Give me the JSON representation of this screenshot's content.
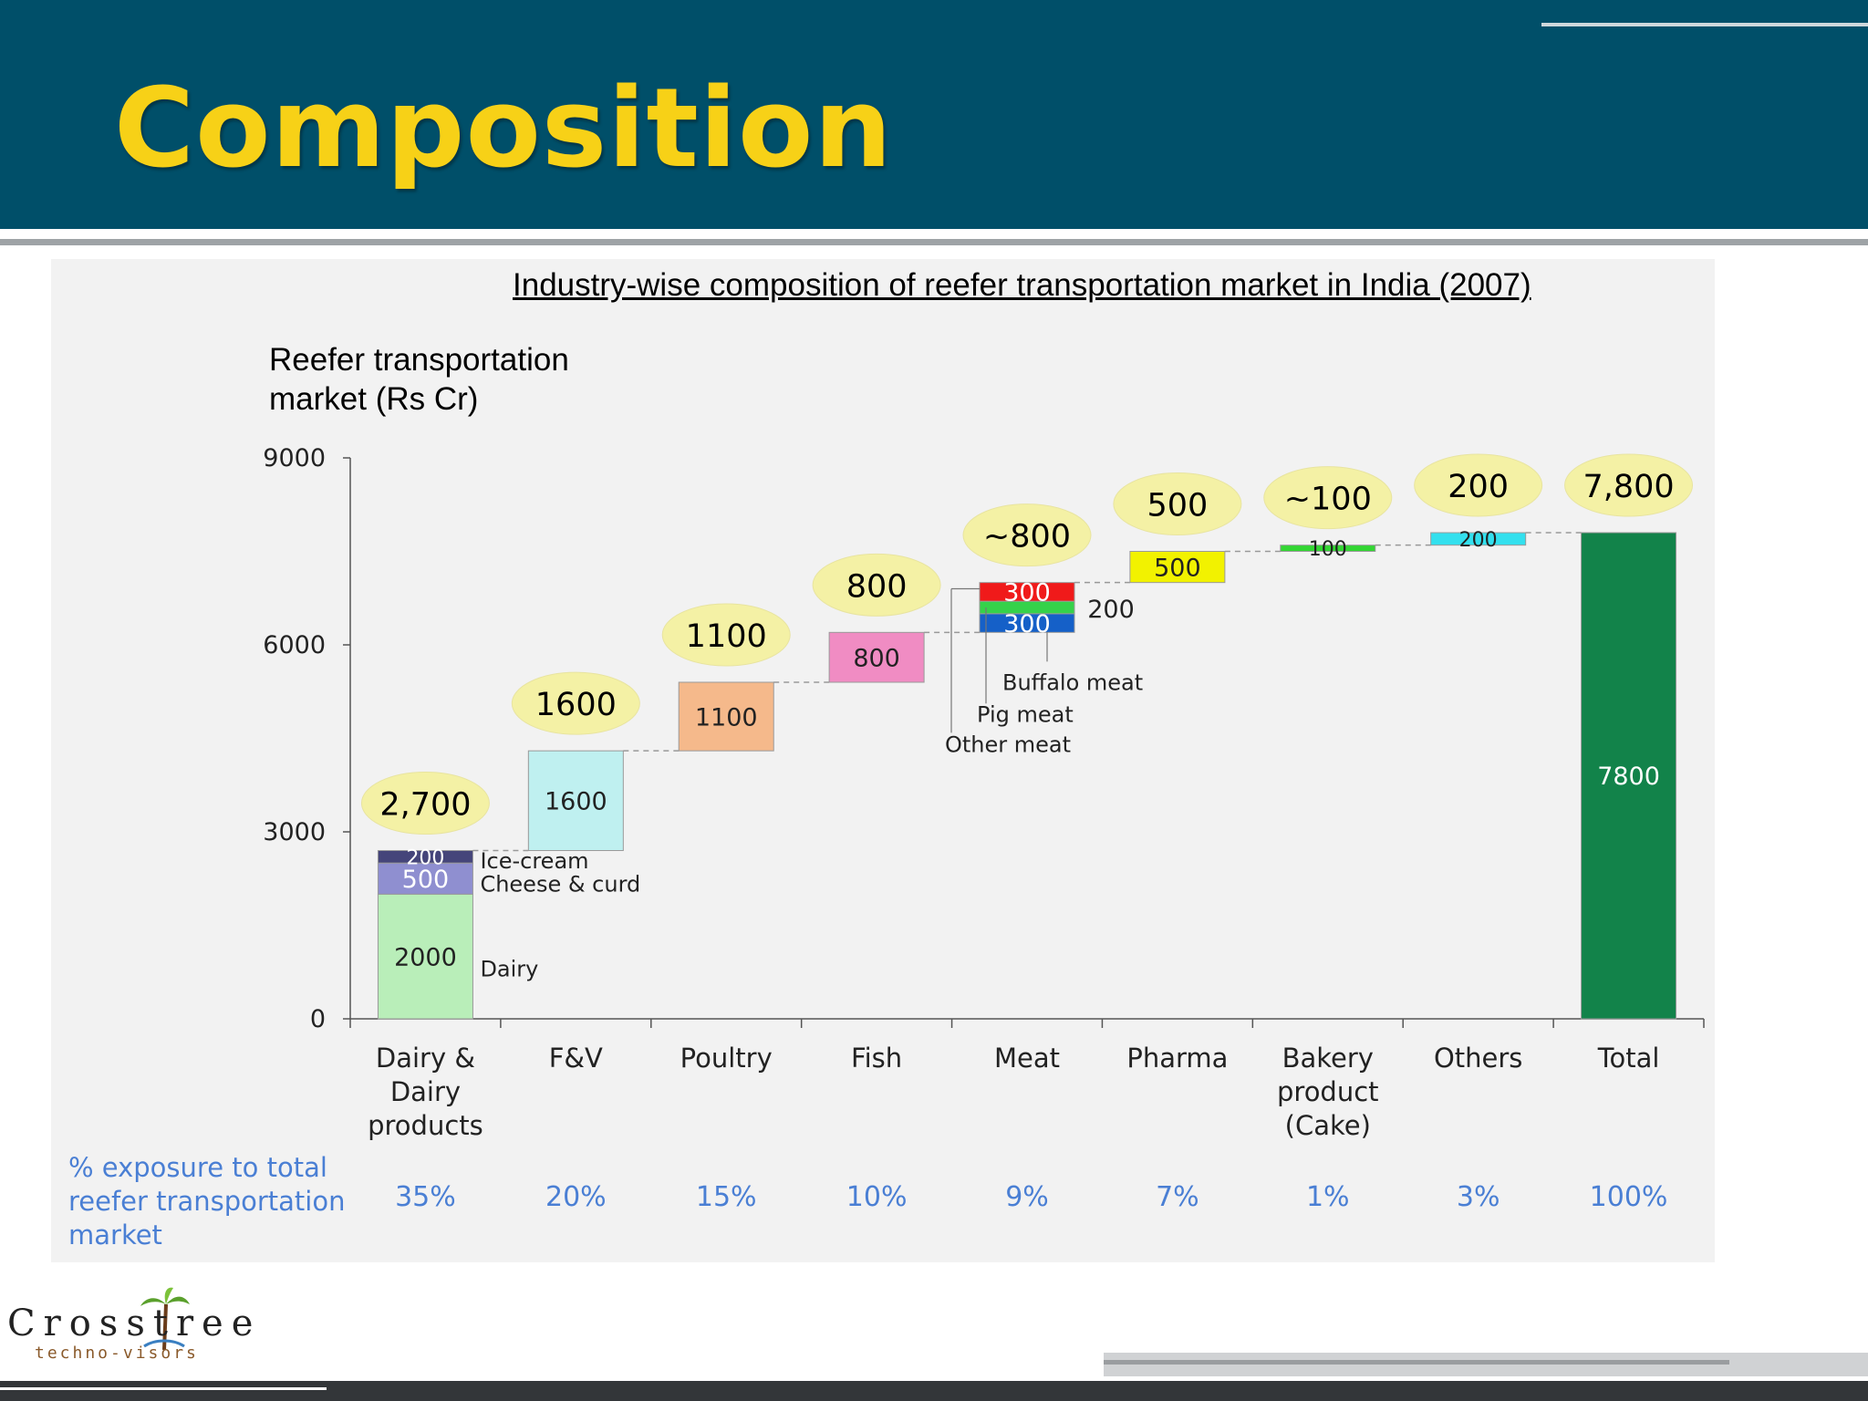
{
  "slide": {
    "title": "Composition",
    "logo_name": "Crosstree",
    "logo_tagline": "techno-visors"
  },
  "colors": {
    "header_bg": "#004f69",
    "title": "#f7d117",
    "exposure_text": "#4a7fd4",
    "bubble": "#f4f1a5"
  },
  "chart_data": {
    "type": "waterfall",
    "title": "Industry-wise composition of reefer transportation market in India (2007)",
    "ylabel": "Reefer transportation\nmarket (Rs Cr)",
    "ylim": [
      0,
      9000
    ],
    "yticks": [
      0,
      3000,
      6000,
      9000
    ],
    "categories": [
      {
        "label": "Dairy &\nDairy\nproducts",
        "bubble": "2,700",
        "exposure": "35%",
        "segments": [
          {
            "name": "Dairy",
            "value": 2000,
            "label": "2000",
            "color": "#b9eeb9"
          },
          {
            "name": "Cheese & curd",
            "value": 500,
            "label": "500",
            "color": "#8f8fd0"
          },
          {
            "name": "Ice-cream",
            "value": 200,
            "label": "200",
            "color": "#45457a"
          }
        ]
      },
      {
        "label": "F&V",
        "bubble": "1600",
        "exposure": "20%",
        "segments": [
          {
            "name": "F&V",
            "value": 1600,
            "label": "1600",
            "color": "#bff0f0"
          }
        ]
      },
      {
        "label": "Poultry",
        "bubble": "1100",
        "exposure": "15%",
        "segments": [
          {
            "name": "Poultry",
            "value": 1100,
            "label": "1100",
            "color": "#f5b98b"
          }
        ]
      },
      {
        "label": "Fish",
        "bubble": "800",
        "exposure": "10%",
        "segments": [
          {
            "name": "Fish",
            "value": 800,
            "label": "800",
            "color": "#f08cc3"
          }
        ]
      },
      {
        "label": "Meat",
        "bubble": "~800",
        "exposure": "9%",
        "segments": [
          {
            "name": "Buffalo meat",
            "value": 300,
            "label": "300",
            "color": "#1560c8"
          },
          {
            "name": "Pig meat",
            "value": 200,
            "label": "200",
            "color": "#35d24a"
          },
          {
            "name": "Other meat",
            "value": 300,
            "label": "300",
            "color": "#f01a1a"
          }
        ]
      },
      {
        "label": "Pharma",
        "bubble": "500",
        "exposure": "7%",
        "segments": [
          {
            "name": "Pharma",
            "value": 500,
            "label": "500",
            "color": "#f2f200"
          }
        ]
      },
      {
        "label": "Bakery\nproduct\n(Cake)",
        "bubble": "~100",
        "exposure": "1%",
        "segments": [
          {
            "name": "Bakery",
            "value": 100,
            "label": "100",
            "color": "#33d633"
          }
        ]
      },
      {
        "label": "Others",
        "bubble": "200",
        "exposure": "3%",
        "segments": [
          {
            "name": "Others",
            "value": 200,
            "label": "200",
            "color": "#33e0ee"
          }
        ]
      },
      {
        "label": "Total",
        "bubble": "7,800",
        "exposure": "100%",
        "is_total": true,
        "segments": [
          {
            "name": "Total",
            "value": 7800,
            "label": "7800",
            "color": "#12834a"
          }
        ]
      }
    ],
    "segment_notes": {
      "dairy": [
        "Ice-cream",
        "Cheese & curd",
        "Dairy"
      ],
      "meat": [
        "Buffalo meat",
        "Pig meat",
        "Other meat"
      ]
    },
    "exposure_label": "% exposure to total reefer transportation market"
  }
}
